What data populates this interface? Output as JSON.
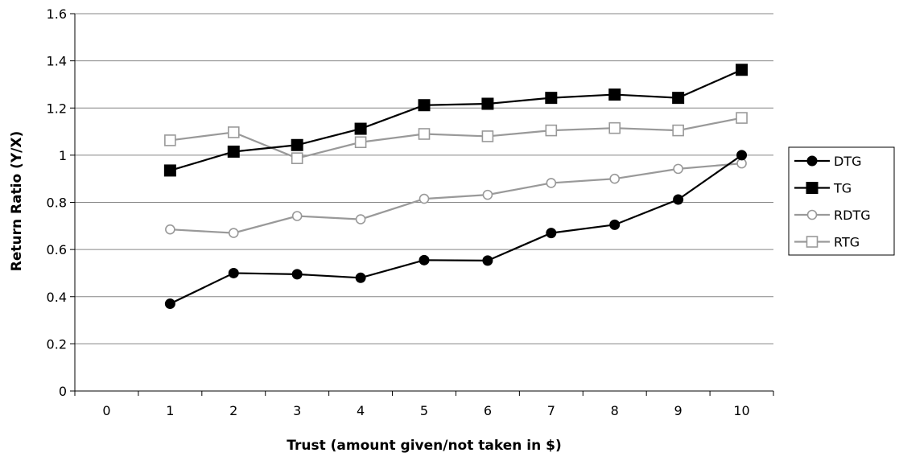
{
  "chart_data": {
    "type": "line",
    "title": "",
    "xlabel": "Trust (amount given/not taken in $)",
    "ylabel": "Return Ratio (Y/X)",
    "categories": [
      "0",
      "1",
      "2",
      "3",
      "4",
      "5",
      "6",
      "7",
      "8",
      "9",
      "10"
    ],
    "yticks": [
      "0",
      "0.2",
      "0.4",
      "0.6",
      "0.8",
      "1",
      "1.2",
      "1.4",
      "1.6"
    ],
    "ylim": [
      0,
      1.6
    ],
    "grid": "horizontal",
    "legend_position": "right",
    "series": [
      {
        "name": "DTG",
        "color": "#000000",
        "marker": "circle-filled",
        "x": [
          1,
          2,
          3,
          4,
          5,
          6,
          7,
          8,
          9,
          10
        ],
        "values": [
          0.37,
          0.5,
          0.495,
          0.48,
          0.555,
          0.553,
          0.67,
          0.705,
          0.812,
          1.0
        ]
      },
      {
        "name": "TG",
        "color": "#000000",
        "marker": "square-filled",
        "x": [
          1,
          2,
          3,
          4,
          5,
          6,
          7,
          8,
          9,
          10
        ],
        "values": [
          0.935,
          1.015,
          1.043,
          1.112,
          1.212,
          1.218,
          1.243,
          1.257,
          1.243,
          1.362
        ]
      },
      {
        "name": "RDTG",
        "color": "#999999",
        "marker": "circle-open",
        "x": [
          1,
          2,
          3,
          4,
          5,
          6,
          7,
          8,
          9,
          10
        ],
        "values": [
          0.685,
          0.67,
          0.742,
          0.728,
          0.815,
          0.832,
          0.882,
          0.9,
          0.942,
          0.965
        ]
      },
      {
        "name": "RTG",
        "color": "#999999",
        "marker": "square-open",
        "x": [
          1,
          2,
          3,
          4,
          5,
          6,
          7,
          8,
          9,
          10
        ],
        "values": [
          1.063,
          1.097,
          0.987,
          1.055,
          1.09,
          1.08,
          1.105,
          1.115,
          1.105,
          1.158
        ]
      }
    ]
  }
}
